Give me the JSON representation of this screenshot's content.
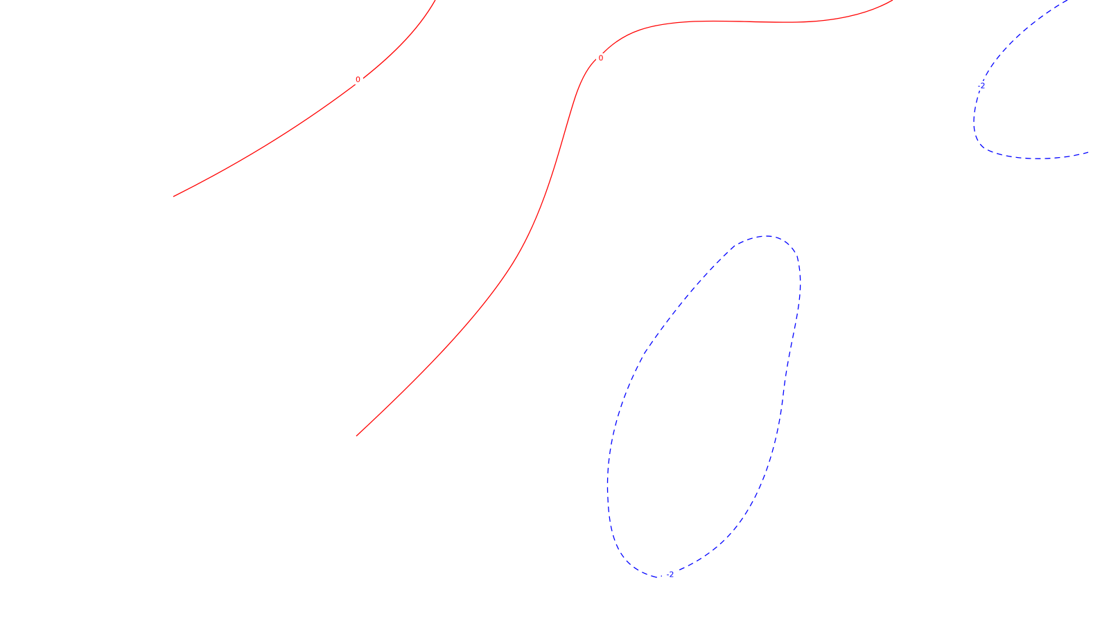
{
  "chart_data": {
    "type": "contour",
    "grid": false,
    "axes_visible": false,
    "series": [
      {
        "level": "0",
        "color": "#ff0000",
        "line_style": "solid",
        "labels": [
          "0",
          "0"
        ]
      },
      {
        "level": "-2",
        "color": "#0000ff",
        "line_style": "dashed",
        "labels": [
          "-2",
          "-2"
        ]
      }
    ]
  }
}
